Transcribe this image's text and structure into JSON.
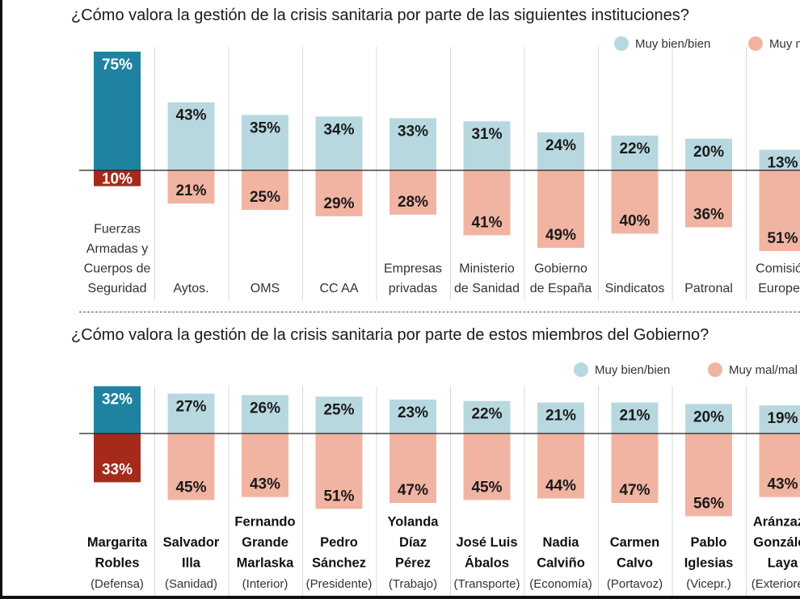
{
  "colors": {
    "positive": "#b8d8e0",
    "negative": "#f2b4a2",
    "highlight_positive": "#1e82a0",
    "highlight_negative": "#a52a1c"
  },
  "chart_data": [
    {
      "type": "bar",
      "title": "¿Cómo valora la gestión de la crisis sanitaria por parte de las siguientes instituciones?",
      "legend": [
        "Muy bien/bien",
        "Muy mal/mal"
      ],
      "legend_visible": [
        "Muy bien/bien",
        "Muy m"
      ],
      "ylim": [
        -60,
        80
      ],
      "categories": [
        [
          "Fuerzas",
          "Armadas y",
          "Cuerpos de",
          "Seguridad"
        ],
        [
          "Aytos."
        ],
        [
          "OMS"
        ],
        [
          "CC AA"
        ],
        [
          "Empresas",
          "privadas"
        ],
        [
          "Ministerio",
          "de Sanidad"
        ],
        [
          "Gobierno",
          "de España"
        ],
        [
          "Sindicatos"
        ],
        [
          "Patronal"
        ],
        [
          "Comisión",
          "Europea"
        ]
      ],
      "series": [
        {
          "name": "Muy bien/bien",
          "values": [
            75,
            43,
            35,
            34,
            33,
            31,
            24,
            22,
            20,
            13
          ]
        },
        {
          "name": "Muy mal/mal",
          "values": [
            10,
            21,
            25,
            29,
            28,
            41,
            49,
            40,
            36,
            51
          ]
        }
      ]
    },
    {
      "type": "bar",
      "title": "¿Cómo valora la gestión de la crisis sanitaria por parte de estos miembros del Gobierno?",
      "legend": [
        "Muy bien/bien",
        "Muy mal/mal"
      ],
      "ylim": [
        -60,
        80
      ],
      "categories": [
        {
          "name": [
            "Margarita",
            "Robles"
          ],
          "role": "(Defensa)"
        },
        {
          "name": [
            "Salvador",
            "Illa"
          ],
          "role": "(Sanidad)"
        },
        {
          "name": [
            "Fernando",
            "Grande",
            "Marlaska"
          ],
          "role": "(Interior)"
        },
        {
          "name": [
            "Pedro",
            "Sánchez"
          ],
          "role": "(Presidente)"
        },
        {
          "name": [
            "Yolanda",
            "Díaz",
            "Pérez"
          ],
          "role": "(Trabajo)"
        },
        {
          "name": [
            "José Luis",
            "Ábalos"
          ],
          "role": "(Transporte)"
        },
        {
          "name": [
            "Nadia",
            "Calviño"
          ],
          "role": "(Economía)"
        },
        {
          "name": [
            "Carmen",
            "Calvo"
          ],
          "role": "(Portavoz)"
        },
        {
          "name": [
            "Pablo",
            "Iglesias"
          ],
          "role": "(Vicepr.)"
        },
        {
          "name": [
            "Aránzazu",
            "González",
            "Laya"
          ],
          "role": "(Exteriores)"
        }
      ],
      "series": [
        {
          "name": "Muy bien/bien",
          "values": [
            32,
            27,
            26,
            25,
            23,
            22,
            21,
            21,
            20,
            19
          ]
        },
        {
          "name": "Muy mal/mal",
          "values": [
            33,
            45,
            43,
            51,
            47,
            45,
            44,
            47,
            56,
            43
          ]
        }
      ]
    }
  ]
}
